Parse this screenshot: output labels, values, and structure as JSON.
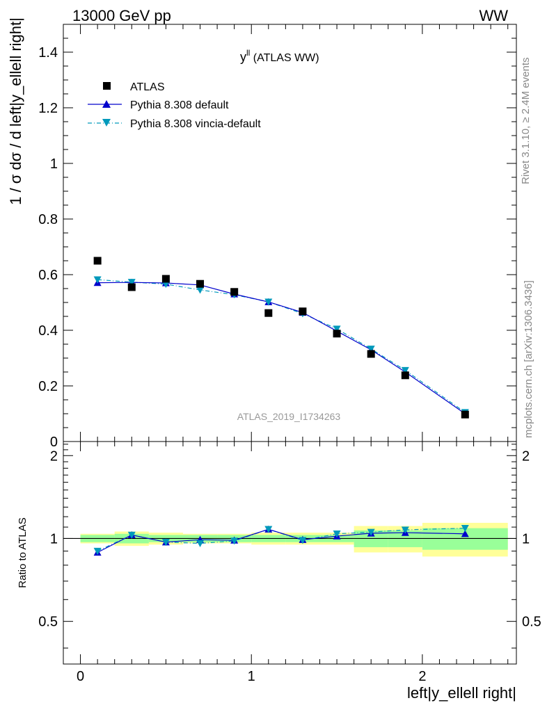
{
  "header": {
    "energy": "13000 GeV pp",
    "process": "WW"
  },
  "side": {
    "rivet": "Rivet 3.1.10, ≥ 2.4M events",
    "mcplots": "mcplots.cern.ch [arXiv:1306.3436]"
  },
  "plot_title": {
    "main": "y",
    "sup": "ll",
    "rest": " (ATLAS WW)"
  },
  "analysis_id": "ATLAS_2019_I1734263",
  "colors": {
    "data": "#000000",
    "default": "#0000cc",
    "vincia": "#0099bb",
    "band_yellow": "#ffff99",
    "band_green": "#99ff99"
  },
  "chart_data": [
    {
      "type": "scatter",
      "title": "y^ll (ATLAS WW)",
      "ylabel": "1 / σ  dσ / d left|y_ellell right|",
      "xlabel": "left|y_ellell right|",
      "xlim": [
        -0.1,
        2.55
      ],
      "ylim": [
        0,
        1.5
      ],
      "yticks": [
        0,
        0.2,
        0.4,
        0.6,
        0.8,
        1,
        1.2,
        1.4
      ],
      "legend_position": "top-left",
      "x": [
        0.1,
        0.3,
        0.5,
        0.7,
        0.9,
        1.1,
        1.3,
        1.5,
        1.7,
        1.9,
        2.25
      ],
      "bin_edges": [
        0,
        0.2,
        0.4,
        0.6,
        0.8,
        1.0,
        1.2,
        1.4,
        1.6,
        1.8,
        2.0,
        2.5
      ],
      "series": [
        {
          "name": "ATLAS",
          "marker": "square",
          "values": [
            0.65,
            0.555,
            0.585,
            0.567,
            0.538,
            0.462,
            0.468,
            0.388,
            0.315,
            0.238,
            0.097
          ]
        },
        {
          "name": "Pythia 8.308 default",
          "marker": "triangle-up",
          "values": [
            0.571,
            0.572,
            0.57,
            0.563,
            0.53,
            0.502,
            0.464,
            0.397,
            0.33,
            0.25,
            0.1
          ]
        },
        {
          "name": "Pythia 8.308 vincia-default",
          "marker": "triangle-down",
          "values": [
            0.582,
            0.573,
            0.566,
            0.545,
            0.528,
            0.502,
            0.46,
            0.405,
            0.333,
            0.256,
            0.105
          ]
        }
      ]
    },
    {
      "type": "line",
      "ylabel": "Ratio to ATLAS",
      "xlabel": "left|y_ellell right|",
      "xlim": [
        -0.1,
        2.55
      ],
      "ylim": [
        0.35,
        2.25
      ],
      "yticks": [
        0.5,
        1,
        2
      ],
      "xticks": [
        0,
        1,
        2
      ],
      "x": [
        0.1,
        0.3,
        0.5,
        0.7,
        0.9,
        1.1,
        1.3,
        1.5,
        1.7,
        1.9,
        2.25
      ],
      "bands": {
        "bin_edges": [
          0,
          0.2,
          0.4,
          0.6,
          0.8,
          1.0,
          1.2,
          1.4,
          1.6,
          1.8,
          2.0,
          2.5
        ],
        "yellow": [
          [
            0.96,
            1.04
          ],
          [
            0.94,
            1.06
          ],
          [
            0.95,
            1.05
          ],
          [
            0.96,
            1.04
          ],
          [
            0.96,
            1.04
          ],
          [
            0.95,
            1.05
          ],
          [
            0.95,
            1.05
          ],
          [
            0.95,
            1.05
          ],
          [
            0.89,
            1.11
          ],
          [
            0.89,
            1.11
          ],
          [
            0.86,
            1.14
          ]
        ],
        "green": [
          [
            0.97,
            1.03
          ],
          [
            0.96,
            1.04
          ],
          [
            0.97,
            1.03
          ],
          [
            0.97,
            1.03
          ],
          [
            0.97,
            1.03
          ],
          [
            0.97,
            1.03
          ],
          [
            0.97,
            1.03
          ],
          [
            0.97,
            1.03
          ],
          [
            0.93,
            1.07
          ],
          [
            0.93,
            1.07
          ],
          [
            0.91,
            1.09
          ]
        ]
      },
      "series": [
        {
          "name": "Pythia 8.308 default",
          "values": [
            0.89,
            1.03,
            0.97,
            0.99,
            0.985,
            1.08,
            0.99,
            1.02,
            1.045,
            1.05,
            1.04
          ]
        },
        {
          "name": "Pythia 8.308 vincia-default",
          "values": [
            0.9,
            1.03,
            0.97,
            0.96,
            0.98,
            1.08,
            0.985,
            1.04,
            1.055,
            1.075,
            1.09
          ]
        }
      ]
    }
  ]
}
